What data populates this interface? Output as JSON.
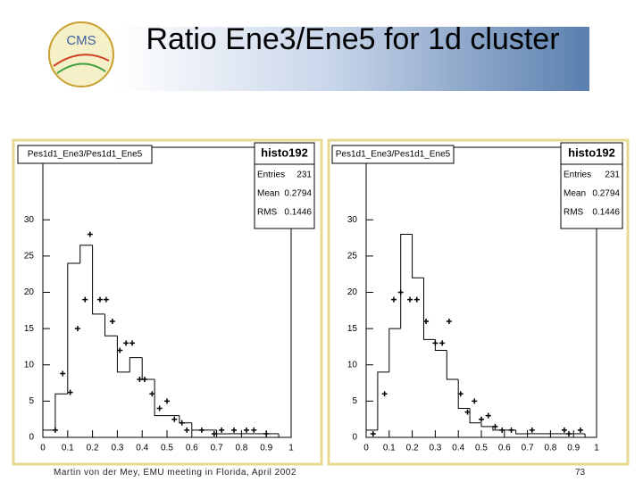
{
  "title": "Ratio Ene3/Ene5 for 1d cluster",
  "logo_text": "CMS",
  "footer": "Martin von der Mey, EMU meeting in Florida, April 2002",
  "page_number": "73",
  "chart_data": [
    {
      "type": "histogram",
      "title": "Pes1d1_Ene3/Pes1d1_Ene5",
      "stats_title": "histo192",
      "stats": [
        {
          "label": "Entries",
          "value": "231"
        },
        {
          "label": "Mean",
          "value": "0.2794"
        },
        {
          "label": "RMS",
          "value": "0.1446"
        }
      ],
      "color": "#000000",
      "bins": [
        0,
        0.05,
        0.1,
        0.15,
        0.2,
        0.25,
        0.3,
        0.35,
        0.4,
        0.45,
        0.5,
        0.55,
        0.6,
        0.65,
        0.7,
        0.75,
        0.8,
        0.85,
        0.9,
        0.95,
        1
      ],
      "counts": [
        1,
        6,
        24,
        26.5,
        17,
        14,
        9,
        11,
        8,
        3,
        3,
        2,
        1,
        1,
        0.5,
        0.5,
        0.5,
        0.5,
        0.5,
        0
      ],
      "points": {
        "x": [
          0.05,
          0.08,
          0.11,
          0.14,
          0.17,
          0.19,
          0.23,
          0.255,
          0.28,
          0.31,
          0.335,
          0.36,
          0.39,
          0.41,
          0.44,
          0.47,
          0.5,
          0.53,
          0.56,
          0.58,
          0.64,
          0.69,
          0.72,
          0.77,
          0.82,
          0.85,
          0.9
        ],
        "y": [
          1,
          8.8,
          6.2,
          15,
          19,
          28,
          19,
          19,
          16,
          12,
          13,
          13,
          8,
          8,
          6,
          4,
          5,
          2.5,
          2,
          1,
          1,
          0.5,
          1,
          1,
          1,
          1,
          0.5
        ]
      },
      "xlim": [
        0,
        1
      ],
      "ylim": [
        0,
        40
      ],
      "xticks": [
        0,
        0.1,
        0.2,
        0.3,
        0.4,
        0.5,
        0.6,
        0.7,
        0.8,
        0.9,
        1
      ],
      "yticks": [
        0,
        5,
        10,
        15,
        20,
        25,
        30
      ]
    },
    {
      "type": "histogram",
      "title": "Pes1d1_Ene3/Pes1d1_Ene5",
      "stats_title": "histo192",
      "stats": [
        {
          "label": "Entries",
          "value": "231"
        },
        {
          "label": "Mean",
          "value": "0.2794"
        },
        {
          "label": "RMS",
          "value": "0.1446"
        }
      ],
      "color": "#000000",
      "bins": [
        0,
        0.05,
        0.1,
        0.15,
        0.2,
        0.25,
        0.3,
        0.35,
        0.4,
        0.45,
        0.5,
        0.55,
        0.6,
        0.65,
        0.7,
        0.75,
        0.8,
        0.85,
        0.9,
        0.95,
        1
      ],
      "counts": [
        1,
        9,
        15,
        28,
        22,
        13.5,
        12,
        8,
        4,
        2,
        1.5,
        1,
        1,
        0.5,
        0.5,
        0.5,
        0.5,
        0.5,
        0.5,
        0
      ],
      "points": {
        "x": [
          0.03,
          0.08,
          0.12,
          0.15,
          0.19,
          0.22,
          0.26,
          0.3,
          0.33,
          0.36,
          0.41,
          0.44,
          0.47,
          0.5,
          0.53,
          0.56,
          0.59,
          0.63,
          0.72,
          0.86,
          0.88,
          0.93
        ],
        "y": [
          0.5,
          6,
          19,
          20,
          19,
          19,
          16,
          13,
          13,
          16,
          6,
          3.5,
          5,
          2.5,
          3,
          1.5,
          1,
          1,
          1,
          1,
          0.5,
          1
        ]
      },
      "xlim": [
        0,
        1
      ],
      "ylim": [
        0,
        40
      ],
      "xticks": [
        0,
        0.1,
        0.2,
        0.3,
        0.4,
        0.5,
        0.6,
        0.7,
        0.8,
        0.9,
        1
      ],
      "yticks": [
        0,
        5,
        10,
        15,
        20,
        25,
        30
      ]
    }
  ]
}
